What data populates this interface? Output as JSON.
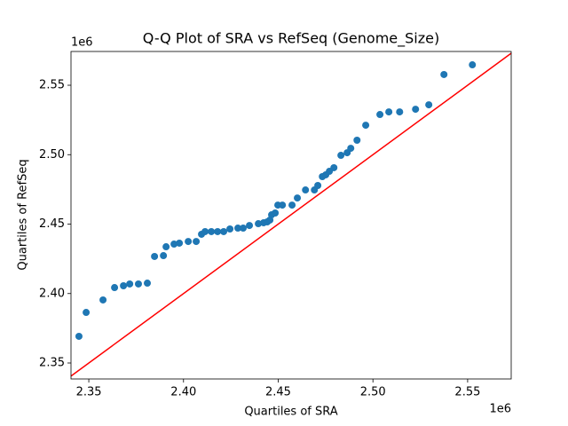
{
  "chart_data": {
    "type": "scatter",
    "title": "Q-Q Plot of SRA vs RefSeq (Genome_Size)",
    "x_label": "Quartiles of SRA",
    "y_label": "Quartiles of RefSeq",
    "x_offset_label": "1e6",
    "y_offset_label": "1e6",
    "color": "#1f77b4",
    "reference_line": "y=x",
    "reference_line_color": "#ff0000",
    "x": [
      2344800,
      2348600,
      2357500,
      2363600,
      2368300,
      2371600,
      2376200,
      2380900,
      2384700,
      2389400,
      2390800,
      2395000,
      2397800,
      2402500,
      2406700,
      2409500,
      2411400,
      2414700,
      2418000,
      2421200,
      2424500,
      2428700,
      2431500,
      2434800,
      2439500,
      2442300,
      2444200,
      2445600,
      2446500,
      2448400,
      2449800,
      2452200,
      2457300,
      2460100,
      2464400,
      2469100,
      2470900,
      2473300,
      2475100,
      2477000,
      2479400,
      2483100,
      2486400,
      2488300,
      2491600,
      2496200,
      2503700,
      2508400,
      2514100,
      2522500,
      2529500,
      2537500,
      2552500
    ],
    "values": [
      2369200,
      2386400,
      2395400,
      2404300,
      2405600,
      2406900,
      2406900,
      2407500,
      2426700,
      2427300,
      2433700,
      2435600,
      2436300,
      2437500,
      2437500,
      2442700,
      2444600,
      2444600,
      2444600,
      2444600,
      2446500,
      2447100,
      2447100,
      2449000,
      2450300,
      2451000,
      2451600,
      2452900,
      2456700,
      2458000,
      2463700,
      2463700,
      2463700,
      2468800,
      2474600,
      2474600,
      2477800,
      2484200,
      2485500,
      2488000,
      2490600,
      2499500,
      2501400,
      2504600,
      2510400,
      2521200,
      2528900,
      2530800,
      2530800,
      2532700,
      2535900,
      2557700,
      2564700
    ],
    "xlim": [
      2340600,
      2573000
    ],
    "ylim": [
      2338500,
      2574300
    ],
    "xticks": [
      {
        "value": 2350000,
        "label": "2.35"
      },
      {
        "value": 2400000,
        "label": "2.40"
      },
      {
        "value": 2450000,
        "label": "2.45"
      },
      {
        "value": 2500000,
        "label": "2.50"
      },
      {
        "value": 2550000,
        "label": "2.55"
      }
    ],
    "yticks": [
      {
        "value": 2350000,
        "label": "2.35"
      },
      {
        "value": 2400000,
        "label": "2.40"
      },
      {
        "value": 2450000,
        "label": "2.45"
      },
      {
        "value": 2500000,
        "label": "2.50"
      },
      {
        "value": 2550000,
        "label": "2.55"
      }
    ]
  }
}
